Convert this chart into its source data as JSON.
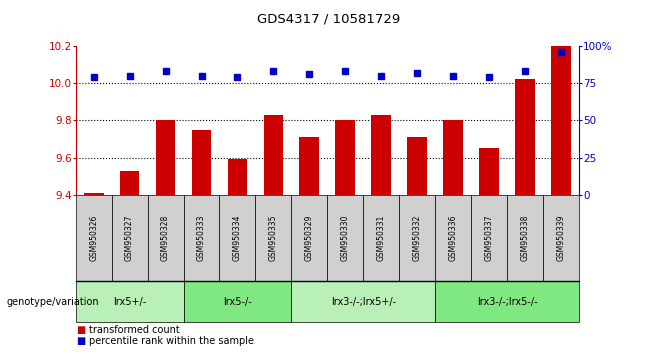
{
  "title": "GDS4317 / 10581729",
  "samples": [
    "GSM950326",
    "GSM950327",
    "GSM950328",
    "GSM950333",
    "GSM950334",
    "GSM950335",
    "GSM950329",
    "GSM950330",
    "GSM950331",
    "GSM950332",
    "GSM950336",
    "GSM950337",
    "GSM950338",
    "GSM950339"
  ],
  "bar_values": [
    9.41,
    9.53,
    9.8,
    9.75,
    9.59,
    9.83,
    9.71,
    9.8,
    9.83,
    9.71,
    9.8,
    9.65,
    10.02,
    10.2
  ],
  "dot_values": [
    79,
    80,
    83,
    80,
    79,
    83,
    81,
    83,
    80,
    82,
    80,
    79,
    83,
    96
  ],
  "ylim_left": [
    9.4,
    10.2
  ],
  "ylim_right": [
    0,
    100
  ],
  "yticks_left": [
    9.4,
    9.6,
    9.8,
    10.0,
    10.2
  ],
  "yticks_right": [
    0,
    25,
    50,
    75,
    100
  ],
  "bar_color": "#CC0000",
  "dot_color": "#0000CC",
  "groups": [
    {
      "label": "lrx5+/-",
      "start": 0,
      "end": 2,
      "color": "#b8f0b8"
    },
    {
      "label": "lrx5-/-",
      "start": 3,
      "end": 5,
      "color": "#80e880"
    },
    {
      "label": "lrx3-/-;lrx5+/-",
      "start": 6,
      "end": 9,
      "color": "#b8f0b8"
    },
    {
      "label": "lrx3-/-;lrx5-/-",
      "start": 10,
      "end": 13,
      "color": "#80e880"
    }
  ],
  "legend_bar_label": "transformed count",
  "legend_dot_label": "percentile rank within the sample",
  "dotted_lines": [
    10.0,
    9.8,
    9.6
  ],
  "bar_base": 9.4,
  "sample_box_color": "#d0d0d0",
  "genotype_label": "genotype/variation",
  "xlim": [
    -0.5,
    13.5
  ]
}
